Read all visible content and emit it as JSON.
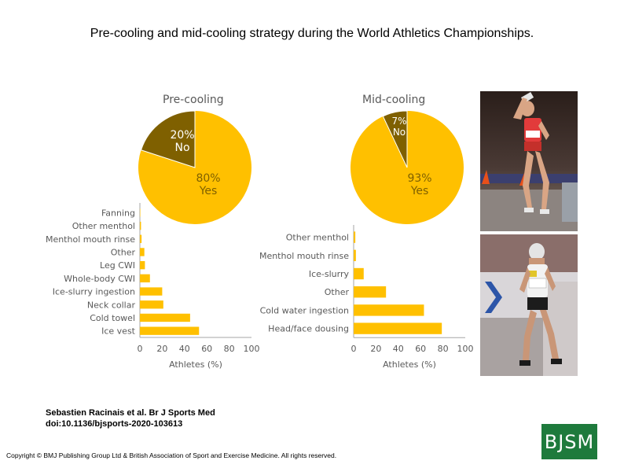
{
  "slide_title": "Pre-cooling and mid-cooling strategy during the World Athletics Championships.",
  "citation": {
    "line1": "Sebastien Racinais et al. Br J Sports Med",
    "line2": "doi:10.1136/bjsports-2020-103613"
  },
  "copyright": "Copyright © BMJ Publishing Group Ltd & British Association of Sport and Exercise Medicine. All rights reserved.",
  "logo_text": "BJSM",
  "colors": {
    "yes": "#FFC000",
    "no": "#7F6000",
    "bar": "#FFC000",
    "axis": "#A6A6A6",
    "label": "#595959"
  },
  "chart_data": [
    {
      "type": "pie",
      "title": "Pre-cooling",
      "slices": [
        {
          "percent": 80,
          "label_pct": "80%",
          "label": "Yes"
        },
        {
          "percent": 20,
          "label_pct": "20%",
          "label": "No"
        }
      ]
    },
    {
      "type": "pie",
      "title": "Mid-cooling",
      "slices": [
        {
          "percent": 93,
          "label_pct": "93%",
          "label": "Yes"
        },
        {
          "percent": 7,
          "label_pct": "7%",
          "label": "No"
        }
      ]
    },
    {
      "type": "bar",
      "orientation": "horizontal",
      "categories": [
        "Fanning",
        "Other menthol",
        "Menthol mouth rinse",
        "Other",
        "Leg CWI",
        "Whole-body CWI",
        "Ice-slurry ingestion",
        "Neck collar",
        "Cold towel",
        "Ice vest"
      ],
      "values": [
        0.3,
        1,
        1.5,
        4,
        4.5,
        9,
        20,
        21,
        45,
        53
      ],
      "xlabel": "Athletes (%)",
      "xlim": [
        0,
        100
      ],
      "xticks": [
        "0",
        "20",
        "40",
        "60",
        "80",
        "100"
      ],
      "grid": false
    },
    {
      "type": "bar",
      "orientation": "horizontal",
      "categories": [
        "Other menthol",
        "Menthol mouth rinse",
        "Ice-slurry",
        "Other",
        "Cold water ingestion",
        "Head/face dousing"
      ],
      "values": [
        1.5,
        2,
        9,
        29,
        63,
        79
      ],
      "xlabel": "Athletes (%)",
      "xlim": [
        0,
        100
      ],
      "xticks": [
        "0",
        "20",
        "40",
        "60",
        "80",
        "100"
      ],
      "grid": false
    }
  ]
}
